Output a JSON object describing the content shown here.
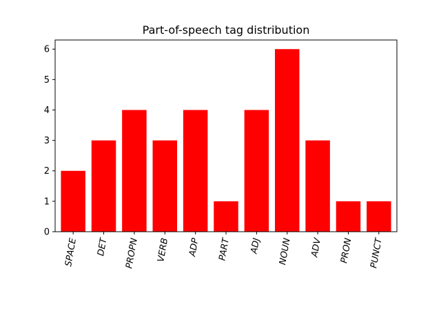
{
  "chart_data": {
    "type": "bar",
    "title": "Part-of-speech tag distribution",
    "xlabel": "",
    "ylabel": "",
    "categories": [
      "SPACE",
      "DET",
      "PROPN",
      "VERB",
      "ADP",
      "PART",
      "ADJ",
      "NOUN",
      "ADV",
      "PRON",
      "PUNCT"
    ],
    "values": [
      2,
      3,
      4,
      3,
      4,
      1,
      4,
      6,
      3,
      1,
      1
    ],
    "ylim": [
      0,
      6.3
    ],
    "yticks": [
      0,
      1,
      2,
      3,
      4,
      5,
      6
    ],
    "bar_color": "#ff0000",
    "grid": false,
    "xtick_rotation_deg": 80
  }
}
